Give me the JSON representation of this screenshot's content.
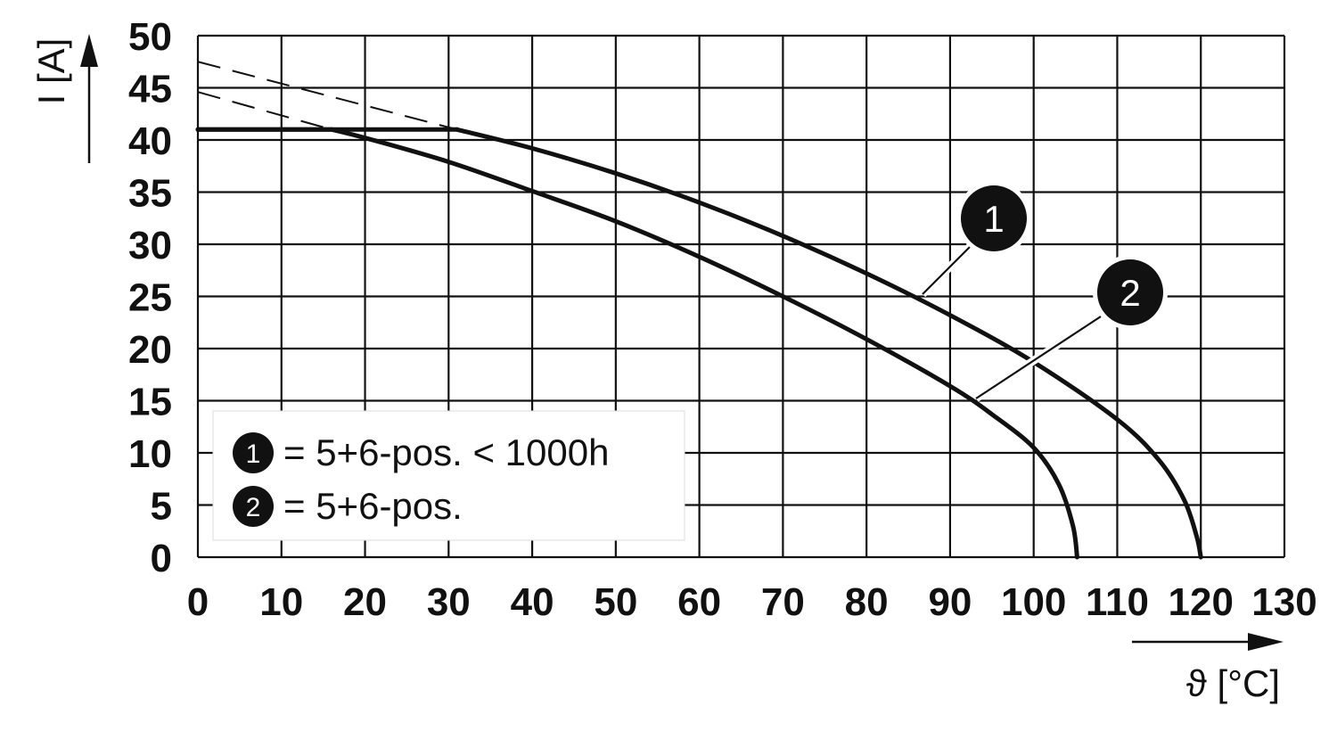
{
  "chart_data": {
    "type": "line",
    "xlabel": "ϑ [°C]",
    "ylabel": "I [A]",
    "xlim": [
      0,
      130
    ],
    "ylim": [
      0,
      50
    ],
    "xticks": [
      "0",
      "10",
      "20",
      "30",
      "40",
      "50",
      "60",
      "70",
      "80",
      "90",
      "100",
      "110",
      "120",
      "130"
    ],
    "yticks": [
      "0",
      "5",
      "10",
      "15",
      "20",
      "25",
      "30",
      "35",
      "40",
      "45",
      "50"
    ],
    "grid": true,
    "legend_position": "bottom-left",
    "series": [
      {
        "name": "= 5+6-pos. < 1000h",
        "marker": "1",
        "color": "#111111",
        "points": [
          [
            0,
            41
          ],
          [
            31,
            41
          ],
          [
            40,
            39.2
          ],
          [
            50,
            36.8
          ],
          [
            60,
            34
          ],
          [
            70,
            30.8
          ],
          [
            80,
            27.2
          ],
          [
            90,
            23.2
          ],
          [
            100,
            18.7
          ],
          [
            110,
            13.2
          ],
          [
            115,
            9.3
          ],
          [
            118,
            5.5
          ],
          [
            119.5,
            2
          ],
          [
            120,
            0
          ]
        ],
        "extrapolation": [
          [
            0,
            47.5
          ],
          [
            31,
            41
          ]
        ]
      },
      {
        "name": "= 5+6-pos.",
        "marker": "2",
        "color": "#111111",
        "points": [
          [
            0,
            41
          ],
          [
            16,
            41
          ],
          [
            20,
            40.2
          ],
          [
            30,
            37.9
          ],
          [
            40,
            35.1
          ],
          [
            50,
            32.2
          ],
          [
            60,
            28.8
          ],
          [
            70,
            25
          ],
          [
            80,
            20.9
          ],
          [
            90,
            16.4
          ],
          [
            95,
            13.7
          ],
          [
            100,
            10.5
          ],
          [
            103,
            7
          ],
          [
            104.7,
            3
          ],
          [
            105.2,
            0
          ]
        ],
        "extrapolation": [
          [
            0,
            44.6
          ],
          [
            16,
            41
          ]
        ]
      }
    ]
  }
}
